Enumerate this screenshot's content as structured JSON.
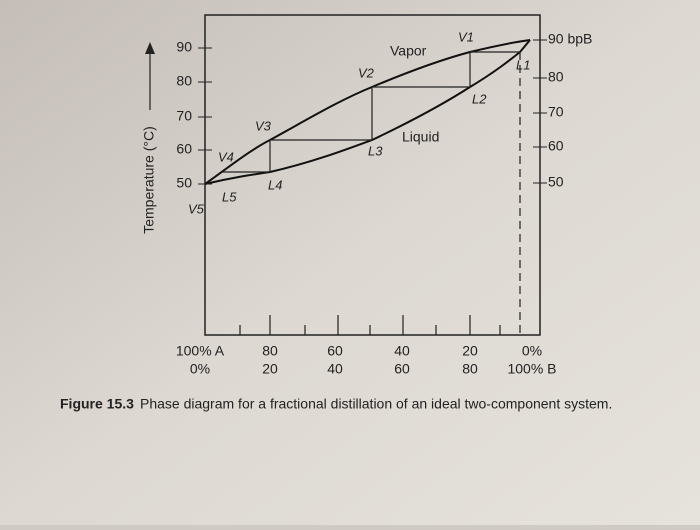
{
  "left_axis": {
    "title": "Temperature (°C)",
    "ticks": [
      "90",
      "80",
      "70",
      "60",
      "50"
    ]
  },
  "right_axis": {
    "ticks": [
      "90 bpB",
      "80",
      "70",
      "60",
      "50"
    ]
  },
  "bottom_axis": {
    "row_a": [
      "100% A",
      "80",
      "60",
      "40",
      "20",
      "0%"
    ],
    "row_b": [
      "0%",
      "20",
      "40",
      "60",
      "80",
      "100% B"
    ]
  },
  "regions": {
    "vapor": "Vapor",
    "liquid": "Liquid"
  },
  "vapor_points": [
    "V1",
    "V2",
    "V3",
    "V4",
    "V5"
  ],
  "liquid_points": [
    "L1",
    "L2",
    "L3",
    "L4",
    "L5"
  ],
  "caption": {
    "label": "Figure 15.3",
    "text": "Phase diagram for a fractional distillation of an ideal two-component system."
  }
}
